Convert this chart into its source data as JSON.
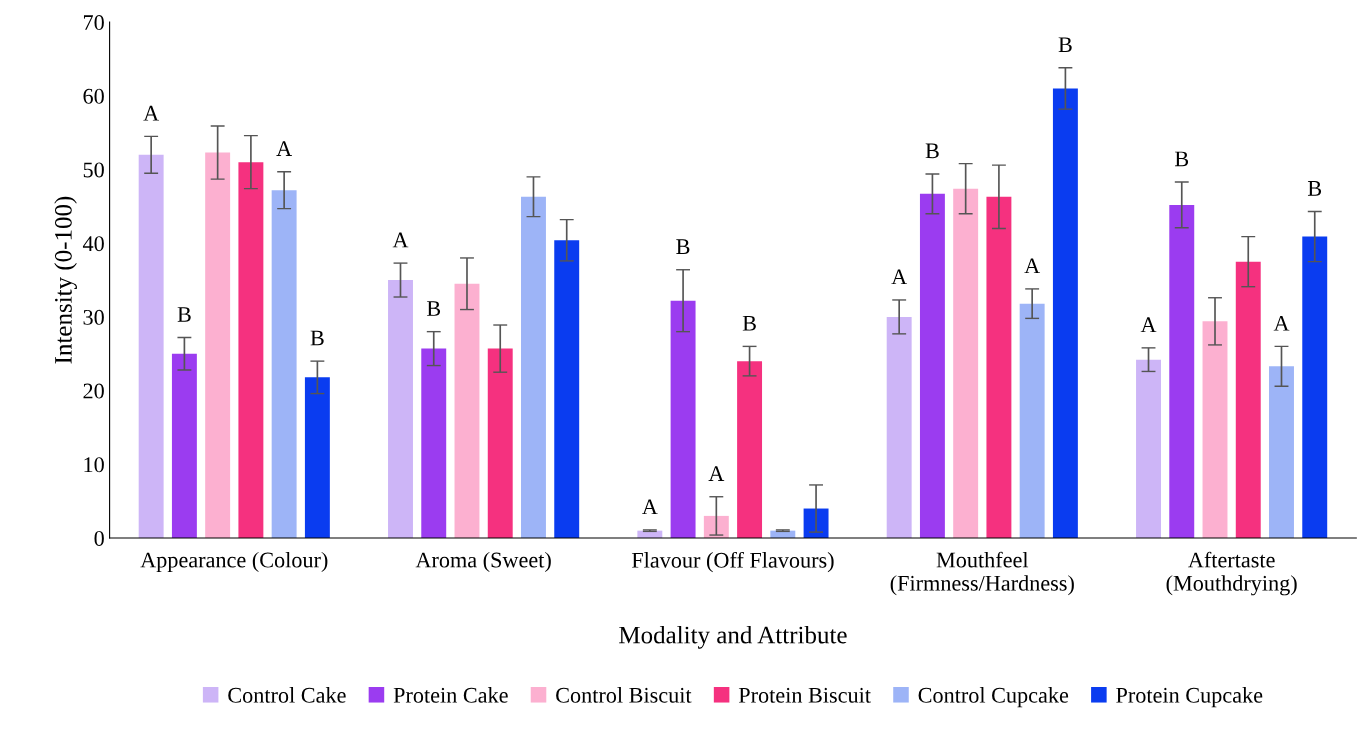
{
  "chart_data": {
    "type": "bar",
    "xlabel": "Modality and Attribute",
    "ylabel": "Intensity (0-100)",
    "categories": [
      "Appearance (Colour)",
      "Aroma (Sweet)",
      "Flavour (Off Flavours)",
      "Mouthfeel\n(Firmness/Hardness)",
      "Aftertaste\n(Mouthdrying)"
    ],
    "series": [
      {
        "name": "Control Cake",
        "color": "#cdb5f7",
        "values": [
          52,
          35,
          1,
          30,
          24.2
        ],
        "errors": [
          2.5,
          2.3,
          0.1,
          2.3,
          1.6
        ],
        "value_labels": [
          "A",
          "A",
          "A",
          "A",
          "A"
        ]
      },
      {
        "name": "Protein Cake",
        "color": "#9b3cf0",
        "values": [
          25,
          25.7,
          32.2,
          46.7,
          45.2
        ],
        "errors": [
          2.2,
          2.3,
          4.2,
          2.7,
          3.1
        ],
        "value_labels": [
          "B",
          "B",
          "B",
          "B",
          "B"
        ]
      },
      {
        "name": "Control Biscuit",
        "color": "#fcb0d0",
        "values": [
          52.3,
          34.5,
          3,
          47.4,
          29.4
        ],
        "errors": [
          3.6,
          3.5,
          2.6,
          3.4,
          3.2
        ],
        "value_labels": [
          null,
          null,
          "A",
          null,
          null
        ]
      },
      {
        "name": "Protein Biscuit",
        "color": "#f5317f",
        "values": [
          51,
          25.7,
          24,
          46.3,
          37.5
        ],
        "errors": [
          3.6,
          3.2,
          2,
          4.3,
          3.4
        ],
        "value_labels": [
          null,
          null,
          "B",
          null,
          null
        ]
      },
      {
        "name": "Control Cupcake",
        "color": "#9db4f7",
        "values": [
          47.2,
          46.3,
          1,
          31.8,
          23.3
        ],
        "errors": [
          2.5,
          2.7,
          0.1,
          2,
          2.7
        ],
        "value_labels": [
          "A",
          null,
          null,
          "A",
          "A"
        ]
      },
      {
        "name": "Protein Cupcake",
        "color": "#0a3cf0",
        "values": [
          21.8,
          40.4,
          4,
          61,
          40.9
        ],
        "errors": [
          2.2,
          2.8,
          3.2,
          2.8,
          3.4
        ],
        "value_labels": [
          "B",
          null,
          null,
          "B",
          "B"
        ]
      }
    ],
    "ylim": [
      0,
      70
    ],
    "yticks": [
      0,
      10,
      20,
      30,
      40,
      50,
      60,
      70
    ],
    "grid": false,
    "legend": "bottom"
  }
}
